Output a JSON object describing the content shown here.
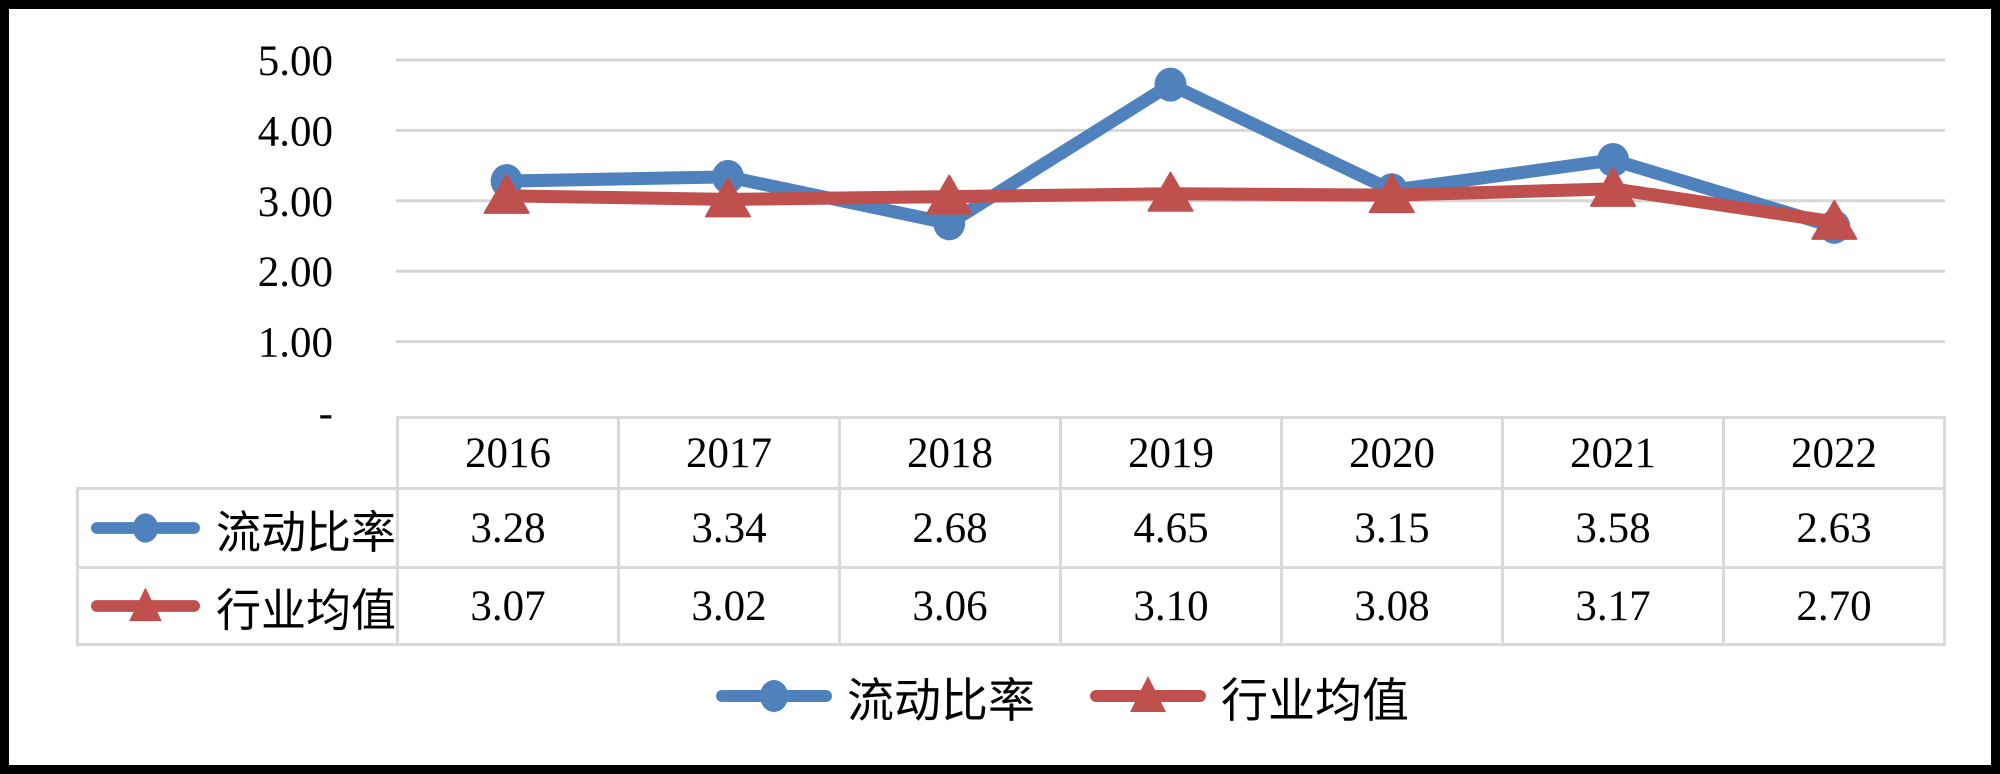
{
  "chart_data": {
    "type": "line",
    "title": "",
    "xlabel": "",
    "ylabel": "",
    "categories": [
      "2016",
      "2017",
      "2018",
      "2019",
      "2020",
      "2021",
      "2022"
    ],
    "series": [
      {
        "name": "流动比率",
        "values": [
          3.28,
          3.34,
          2.68,
          4.65,
          3.15,
          3.58,
          2.63
        ],
        "color": "#4f81bd",
        "marker": "circle"
      },
      {
        "name": "行业均值",
        "values": [
          3.07,
          3.02,
          3.06,
          3.1,
          3.08,
          3.17,
          2.7
        ],
        "color": "#c0504d",
        "marker": "triangle"
      }
    ],
    "ylim": [
      0,
      5
    ],
    "y_ticks": [
      {
        "value": 5,
        "label": "5.00"
      },
      {
        "value": 4,
        "label": "4.00"
      },
      {
        "value": 3,
        "label": "3.00"
      },
      {
        "value": 2,
        "label": "2.00"
      },
      {
        "value": 1,
        "label": "1.00"
      },
      {
        "value": 0,
        "label": "-"
      }
    ],
    "grid": true,
    "legend_position": "bottom",
    "value_decimals": 2,
    "table_shown": true
  },
  "colors": {
    "series_blue": "#4f81bd",
    "series_red": "#c0504d",
    "gridline": "#d6d6d6",
    "table_border": "#d9d9d9",
    "frame_border": "#000000",
    "text": "#000000",
    "background": "#ffffff"
  }
}
